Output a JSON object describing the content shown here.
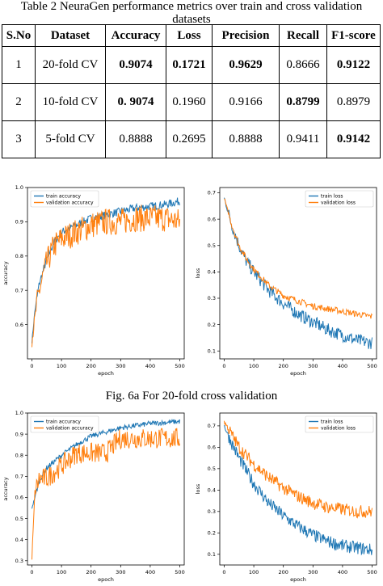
{
  "table": {
    "caption_line1": "Table 2 NeuraGen performance metrics over train and cross validation",
    "caption_line2": "datasets",
    "headers": [
      "S.No",
      "Dataset",
      "Accuracy",
      "Loss",
      "Precision",
      "Recall",
      "F1-score"
    ],
    "rows": [
      {
        "sno": "1",
        "dataset": "20-fold CV",
        "accuracy": "0.9074",
        "loss": "0.1721",
        "precision": "0.9629",
        "recall": "0.8666",
        "f1": "0.9122"
      },
      {
        "sno": "2",
        "dataset": "10-fold CV",
        "accuracy": "0. 9074",
        "loss": "0.1960",
        "precision": "0.9166",
        "recall": "0.8799",
        "f1": "0.8979"
      },
      {
        "sno": "3",
        "dataset": "5-fold CV",
        "accuracy": "0.8888",
        "loss": "0.2695",
        "precision": "0.8888",
        "recall": "0.9411",
        "f1": "0.9142"
      }
    ]
  },
  "figure_caption": "Fig. 6a For 20-fold cross validation",
  "colors": {
    "train": "#1f77b4",
    "validation": "#ff7f0e"
  },
  "chart_data": [
    {
      "type": "line",
      "xlabel": "epoch",
      "ylabel": "accuracy",
      "xlim": [
        -15,
        515
      ],
      "ylim": [
        0.5,
        1.0
      ],
      "xticks": [
        0,
        100,
        200,
        300,
        400,
        500
      ],
      "yticks": [
        0.6,
        0.7,
        0.8,
        0.9,
        1.0
      ],
      "ytick_labels": [
        "0.6",
        "0.7",
        "0.8",
        "0.9",
        "1.0"
      ],
      "legend_position": "top-left",
      "series": [
        {
          "name": "train accuracy",
          "x": [
            0,
            10,
            25,
            50,
            75,
            100,
            150,
            200,
            250,
            300,
            350,
            400,
            450,
            500
          ],
          "y": [
            0.55,
            0.64,
            0.72,
            0.79,
            0.84,
            0.87,
            0.89,
            0.91,
            0.92,
            0.93,
            0.94,
            0.945,
            0.95,
            0.96
          ]
        },
        {
          "name": "validation accuracy",
          "x": [
            0,
            10,
            25,
            50,
            75,
            100,
            150,
            200,
            250,
            300,
            350,
            400,
            450,
            500
          ],
          "y": [
            0.55,
            0.62,
            0.7,
            0.78,
            0.83,
            0.85,
            0.87,
            0.89,
            0.9,
            0.9,
            0.91,
            0.91,
            0.91,
            0.9
          ]
        }
      ]
    },
    {
      "type": "line",
      "xlabel": "epoch",
      "ylabel": "loss",
      "xlim": [
        -15,
        515
      ],
      "ylim": [
        0.07,
        0.72
      ],
      "xticks": [
        0,
        100,
        200,
        300,
        400,
        500
      ],
      "yticks": [
        0.1,
        0.2,
        0.3,
        0.4,
        0.5,
        0.6,
        0.7
      ],
      "ytick_labels": [
        "0.1",
        "0.2",
        "0.3",
        "0.4",
        "0.5",
        "0.6",
        "0.7"
      ],
      "legend_position": "top-right",
      "series": [
        {
          "name": "train loss",
          "x": [
            0,
            25,
            50,
            75,
            100,
            150,
            200,
            250,
            300,
            350,
            400,
            450,
            500
          ],
          "y": [
            0.68,
            0.58,
            0.5,
            0.44,
            0.4,
            0.33,
            0.28,
            0.24,
            0.21,
            0.18,
            0.16,
            0.14,
            0.13
          ]
        },
        {
          "name": "validation loss",
          "x": [
            0,
            25,
            50,
            75,
            100,
            150,
            200,
            250,
            300,
            350,
            400,
            450,
            500
          ],
          "y": [
            0.68,
            0.58,
            0.5,
            0.45,
            0.41,
            0.35,
            0.31,
            0.29,
            0.27,
            0.26,
            0.25,
            0.24,
            0.23
          ]
        }
      ]
    },
    {
      "type": "line",
      "xlabel": "epoch",
      "ylabel": "accuracy",
      "xlim": [
        -15,
        515
      ],
      "ylim": [
        0.28,
        1.0
      ],
      "xticks": [
        0,
        100,
        200,
        300,
        400,
        500
      ],
      "yticks": [
        0.3,
        0.4,
        0.5,
        0.6,
        0.7,
        0.8,
        0.9,
        1.0
      ],
      "ytick_labels": [
        "0.3",
        "0.4",
        "0.5",
        "0.6",
        "0.7",
        "0.8",
        "0.9",
        "1.0"
      ],
      "legend_position": "top-left",
      "series": [
        {
          "name": "train accuracy",
          "x": [
            0,
            10,
            25,
            50,
            100,
            150,
            200,
            250,
            300,
            350,
            400,
            450,
            500
          ],
          "y": [
            0.55,
            0.6,
            0.68,
            0.74,
            0.8,
            0.85,
            0.89,
            0.91,
            0.93,
            0.94,
            0.95,
            0.955,
            0.96
          ]
        },
        {
          "name": "validation accuracy",
          "x": [
            0,
            10,
            25,
            50,
            100,
            150,
            200,
            250,
            300,
            350,
            400,
            450,
            500
          ],
          "y": [
            0.31,
            0.62,
            0.69,
            0.69,
            0.75,
            0.81,
            0.81,
            0.81,
            0.88,
            0.88,
            0.88,
            0.88,
            0.88
          ]
        }
      ]
    },
    {
      "type": "line",
      "xlabel": "epoch",
      "ylabel": "loss",
      "xlim": [
        -15,
        515
      ],
      "ylim": [
        0.05,
        0.76
      ],
      "xticks": [
        0,
        100,
        200,
        300,
        400,
        500
      ],
      "yticks": [
        0.1,
        0.2,
        0.3,
        0.4,
        0.5,
        0.6,
        0.7
      ],
      "ytick_labels": [
        "0.1",
        "0.2",
        "0.3",
        "0.4",
        "0.5",
        "0.6",
        "0.7"
      ],
      "legend_position": "top-right",
      "series": [
        {
          "name": "train loss",
          "x": [
            0,
            25,
            50,
            100,
            150,
            200,
            250,
            300,
            350,
            400,
            450,
            500
          ],
          "y": [
            0.7,
            0.62,
            0.55,
            0.43,
            0.34,
            0.28,
            0.23,
            0.19,
            0.16,
            0.14,
            0.13,
            0.12
          ]
        },
        {
          "name": "validation loss",
          "x": [
            0,
            25,
            50,
            100,
            150,
            200,
            250,
            300,
            350,
            400,
            450,
            500
          ],
          "y": [
            0.72,
            0.66,
            0.6,
            0.52,
            0.46,
            0.41,
            0.37,
            0.34,
            0.32,
            0.31,
            0.3,
            0.3
          ]
        }
      ]
    }
  ]
}
